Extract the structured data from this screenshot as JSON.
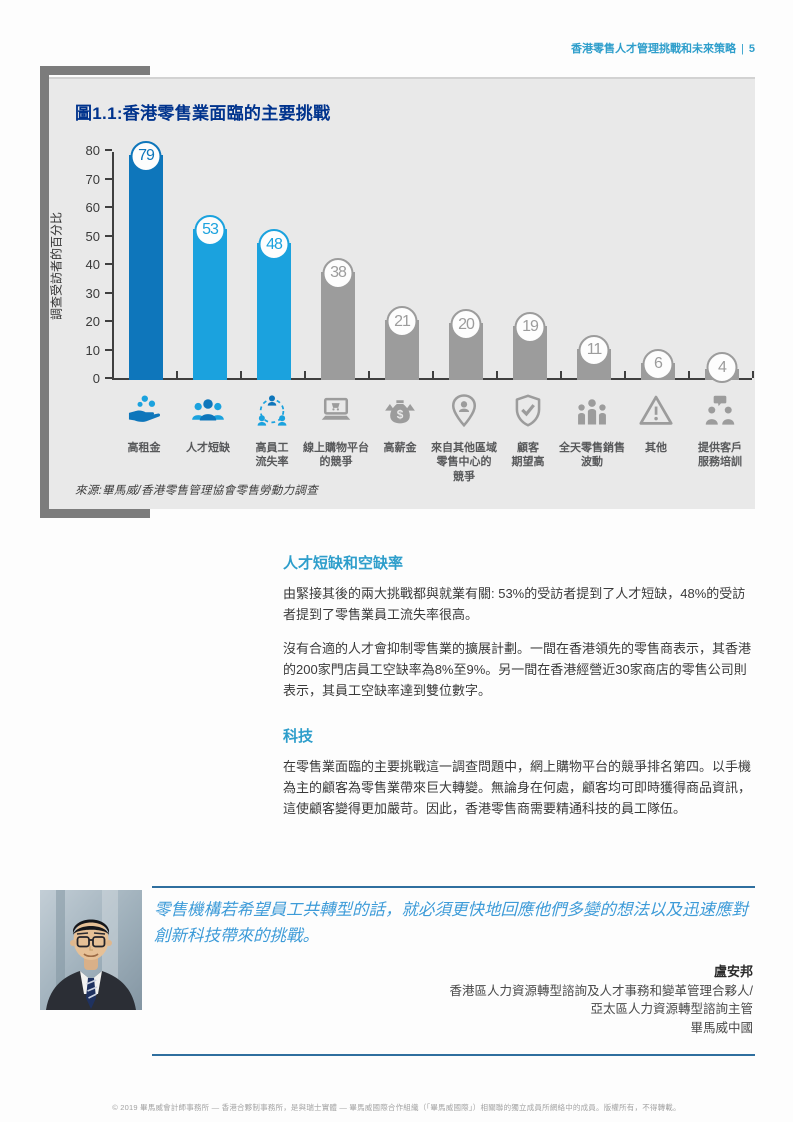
{
  "page_header": {
    "title": "香港零售人才管理挑戰和未來策略",
    "page_number": "5"
  },
  "chart_data": {
    "type": "bar",
    "title": "圖1.1:香港零售業面臨的主要挑戰",
    "ylabel": "調查受訪者的百分比",
    "xlabel": "",
    "ylim": [
      0,
      80
    ],
    "yticks": [
      0,
      10,
      20,
      30,
      40,
      50,
      60,
      70,
      80
    ],
    "grid": false,
    "legend_position": "none",
    "categories": [
      "高租金",
      "人才短缺",
      "高員工\n流失率",
      "線上購物平台\n的競爭",
      "高薪金",
      "來自其他區域\n零售中心的\n競爭",
      "顧客\n期望高",
      "全天零售銷售\n波動",
      "其他",
      "提供客戶\n服務培訓"
    ],
    "values": [
      79,
      53,
      48,
      38,
      21,
      20,
      19,
      11,
      6,
      4
    ],
    "bar_colors": [
      "#0e76bb",
      "#1ba2de",
      "#1ba2de",
      "#9c9c9c",
      "#9c9c9c",
      "#9c9c9c",
      "#9c9c9c",
      "#9c9c9c",
      "#9c9c9c",
      "#9c9c9c"
    ],
    "icons": [
      "coins-hand-icon",
      "people-group-icon",
      "staff-turnover-icon",
      "online-shopping-icon",
      "money-bag-icon",
      "location-pin-icon",
      "shield-check-icon",
      "people-fluctuation-icon",
      "warning-icon",
      "service-training-icon"
    ],
    "icon_colors": [
      [
        "#0e76bb",
        "#1ba2de"
      ],
      [
        "#0e76bb",
        "#1ba2de"
      ],
      [
        "#1ba2de",
        "#0e76bb"
      ],
      [
        "#9c9c9c",
        "#9c9c9c"
      ],
      [
        "#9c9c9c",
        "#9c9c9c"
      ],
      [
        "#9c9c9c",
        "#9c9c9c"
      ],
      [
        "#9c9c9c",
        "#9c9c9c"
      ],
      [
        "#9c9c9c",
        "#9c9c9c"
      ],
      [
        "#9c9c9c",
        "#9c9c9c"
      ],
      [
        "#9c9c9c",
        "#9c9c9c"
      ]
    ],
    "source": "來源:畢馬威/香港零售管理協會零售勞動力調查"
  },
  "sections": [
    {
      "heading": "人才短缺和空缺率",
      "paragraphs": [
        "由緊接其後的兩大挑戰都與就業有關: 53%的受訪者提到了人才短缺，48%的受訪者提到了零售業員工流失率很高。",
        "沒有合適的人才會抑制零售業的擴展計劃。一間在香港領先的零售商表示，其香港的200家門店員工空缺率為8%至9%。另一間在香港經營近30家商店的零售公司則表示，其員工空缺率達到雙位數字。"
      ]
    },
    {
      "heading": "科技",
      "paragraphs": [
        "在零售業面臨的主要挑戰這一調查問題中，網上購物平台的競爭排名第四。以手機為主的顧客為零售業帶來巨大轉變。無論身在何處，顧客均可即時獲得商品資訊，這使顧客變得更加嚴苛。因此，香港零售商需要精通科技的員工隊伍。"
      ]
    }
  ],
  "quote": {
    "text": "零售機構若希望員工共轉型的話，就必須更快地回應他們多變的想法以及迅速應對創新科技帶來的挑戰。",
    "name": "盧安邦",
    "roles": [
      "香港區人力資源轉型諮詢及人才事務和變革管理合夥人/",
      "亞太區人力資源轉型諮詢主管",
      "畢馬威中國"
    ]
  },
  "footer": "© 2019 畢馬威會計師事務所 — 香港合夥制事務所，是與瑞士實體 — 畢馬威國際合作組織（「畢馬威國際」）相關聯的獨立成員所網絡中的成員。版權所有，不得轉載。",
  "colors": {
    "accent_blue": "#2e9ecb",
    "navy": "#00338d",
    "bar_dark_blue": "#0e76bb",
    "bar_light_blue": "#1ba2de",
    "bar_gray": "#9c9c9c",
    "rule_blue": "#2f6f9f"
  }
}
